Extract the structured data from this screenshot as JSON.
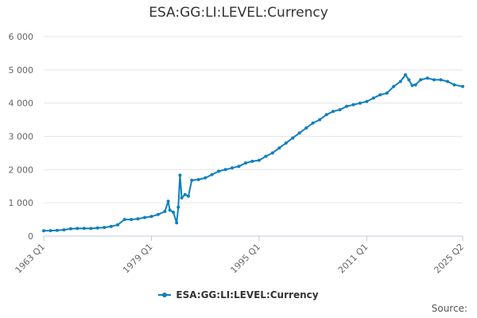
{
  "chart_data": {
    "type": "line",
    "title": "ESA:GG:LI:LEVEL:Currency",
    "xlabel": "",
    "ylabel": "",
    "x_range": [
      "1963 Q1",
      "2025 Q2"
    ],
    "x_tick_labels": [
      "1963 Q1",
      "1979 Q1",
      "1995 Q1",
      "2011 Q1",
      "2025 Q2"
    ],
    "ylim": [
      0,
      6000
    ],
    "y_tick_labels": [
      "0",
      "1 000",
      "2 000",
      "3 000",
      "4 000",
      "5 000",
      "6 000"
    ],
    "y_ticks": [
      0,
      1000,
      2000,
      3000,
      4000,
      5000,
      6000
    ],
    "grid": true,
    "legend_position": "bottom",
    "series": [
      {
        "name": "ESA:GG:LI:LEVEL:Currency",
        "color": "#0f7fbf",
        "points": [
          [
            "1963 Q1",
            160
          ],
          [
            "1964 Q1",
            165
          ],
          [
            "1965 Q1",
            175
          ],
          [
            "1966 Q1",
            190
          ],
          [
            "1967 Q1",
            220
          ],
          [
            "1968 Q1",
            230
          ],
          [
            "1969 Q1",
            235
          ],
          [
            "1970 Q1",
            230
          ],
          [
            "1971 Q1",
            245
          ],
          [
            "1972 Q1",
            260
          ],
          [
            "1973 Q1",
            290
          ],
          [
            "1974 Q1",
            340
          ],
          [
            "1975 Q1",
            500
          ],
          [
            "1976 Q1",
            500
          ],
          [
            "1977 Q1",
            520
          ],
          [
            "1978 Q1",
            560
          ],
          [
            "1979 Q1",
            590
          ],
          [
            "1980 Q1",
            650
          ],
          [
            "1981 Q1",
            740
          ],
          [
            "1981 Q3",
            1050
          ],
          [
            "1981 Q4",
            780
          ],
          [
            "1982 Q2",
            720
          ],
          [
            "1982 Q4",
            400
          ],
          [
            "1983 Q1",
            870
          ],
          [
            "1983 Q2",
            1830
          ],
          [
            "1983 Q3",
            1150
          ],
          [
            "1984 Q1",
            1250
          ],
          [
            "1984 Q3",
            1200
          ],
          [
            "1985 Q1",
            1680
          ],
          [
            "1986 Q1",
            1700
          ],
          [
            "1987 Q1",
            1750
          ],
          [
            "1988 Q1",
            1850
          ],
          [
            "1989 Q1",
            1950
          ],
          [
            "1990 Q1",
            2000
          ],
          [
            "1991 Q1",
            2050
          ],
          [
            "1992 Q1",
            2100
          ],
          [
            "1993 Q1",
            2200
          ],
          [
            "1994 Q1",
            2250
          ],
          [
            "1995 Q1",
            2280
          ],
          [
            "1996 Q1",
            2400
          ],
          [
            "1997 Q1",
            2500
          ],
          [
            "1998 Q1",
            2650
          ],
          [
            "1999 Q1",
            2800
          ],
          [
            "2000 Q1",
            2950
          ],
          [
            "2001 Q1",
            3100
          ],
          [
            "2002 Q1",
            3250
          ],
          [
            "2003 Q1",
            3400
          ],
          [
            "2004 Q1",
            3500
          ],
          [
            "2005 Q1",
            3650
          ],
          [
            "2006 Q1",
            3750
          ],
          [
            "2007 Q1",
            3800
          ],
          [
            "2008 Q1",
            3900
          ],
          [
            "2009 Q1",
            3950
          ],
          [
            "2010 Q1",
            4000
          ],
          [
            "2011 Q1",
            4050
          ],
          [
            "2012 Q1",
            4150
          ],
          [
            "2013 Q1",
            4250
          ],
          [
            "2014 Q1",
            4300
          ],
          [
            "2015 Q1",
            4500
          ],
          [
            "2016 Q1",
            4650
          ],
          [
            "2016 Q4",
            4850
          ],
          [
            "2017 Q2",
            4700
          ],
          [
            "2017 Q4",
            4530
          ],
          [
            "2018 Q2",
            4550
          ],
          [
            "2019 Q1",
            4700
          ],
          [
            "2020 Q1",
            4750
          ],
          [
            "2021 Q1",
            4700
          ],
          [
            "2022 Q1",
            4700
          ],
          [
            "2023 Q1",
            4650
          ],
          [
            "2024 Q1",
            4550
          ],
          [
            "2025 Q2",
            4500
          ]
        ]
      }
    ]
  },
  "legend": {
    "label": "ESA:GG:LI:LEVEL:Currency"
  },
  "footer": {
    "source_label": "Source:"
  }
}
